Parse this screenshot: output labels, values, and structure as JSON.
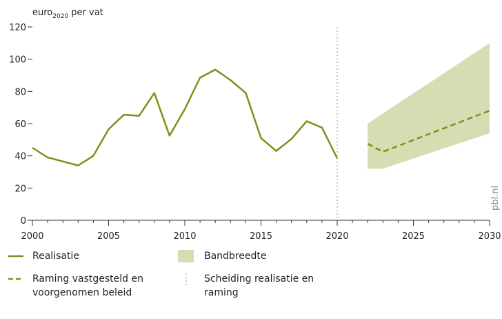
{
  "chart_data": {
    "type": "line",
    "ylabel": {
      "base": "euro",
      "sub": "2020",
      "rest": " per vat"
    },
    "xlim": [
      2000,
      2030
    ],
    "ylim": [
      0,
      120
    ],
    "xticks": [
      2000,
      2005,
      2010,
      2015,
      2020,
      2025,
      2030
    ],
    "xminorticks": [
      2000,
      2001,
      2002,
      2003,
      2004,
      2005,
      2006,
      2007,
      2008,
      2009,
      2010,
      2011,
      2012,
      2013,
      2014,
      2015,
      2016,
      2017,
      2018,
      2019,
      2020,
      2021,
      2022,
      2023,
      2024,
      2025,
      2026,
      2027,
      2028,
      2029,
      2030
    ],
    "yticks": [
      0,
      20,
      40,
      60,
      80,
      100,
      120
    ],
    "series": [
      {
        "name": "Realisatie",
        "color": "#7f8f1a",
        "dashed": false,
        "x": [
          2000,
          2001,
          2002,
          2003,
          2004,
          2005,
          2006,
          2007,
          2008,
          2009,
          2010,
          2011,
          2012,
          2013,
          2014,
          2015,
          2016,
          2017,
          2018,
          2019,
          2020
        ],
        "values": [
          45,
          39,
          36.5,
          34,
          40,
          56.5,
          65.5,
          64.8,
          79,
          52.5,
          69,
          88.5,
          93.5,
          87,
          79,
          51,
          43,
          50.5,
          61.5,
          57.5,
          38.5
        ]
      },
      {
        "name": "Raming vastgesteld en voorgenomen beleid",
        "color": "#7f8f1a",
        "dashed": true,
        "x": [
          2022,
          2023,
          2030
        ],
        "values": [
          47.5,
          42.5,
          68
        ]
      }
    ],
    "band": {
      "name": "Bandbreedte",
      "color": "#d6ddb2",
      "x": [
        2022,
        2023,
        2030
      ],
      "lower": [
        32,
        32,
        54
      ],
      "upper": [
        60,
        66.3,
        110
      ]
    },
    "separator": {
      "name": "Scheiding realisatie en raming",
      "x": 2020,
      "color": "#c8c8c8"
    },
    "source": "pbl.nl"
  }
}
